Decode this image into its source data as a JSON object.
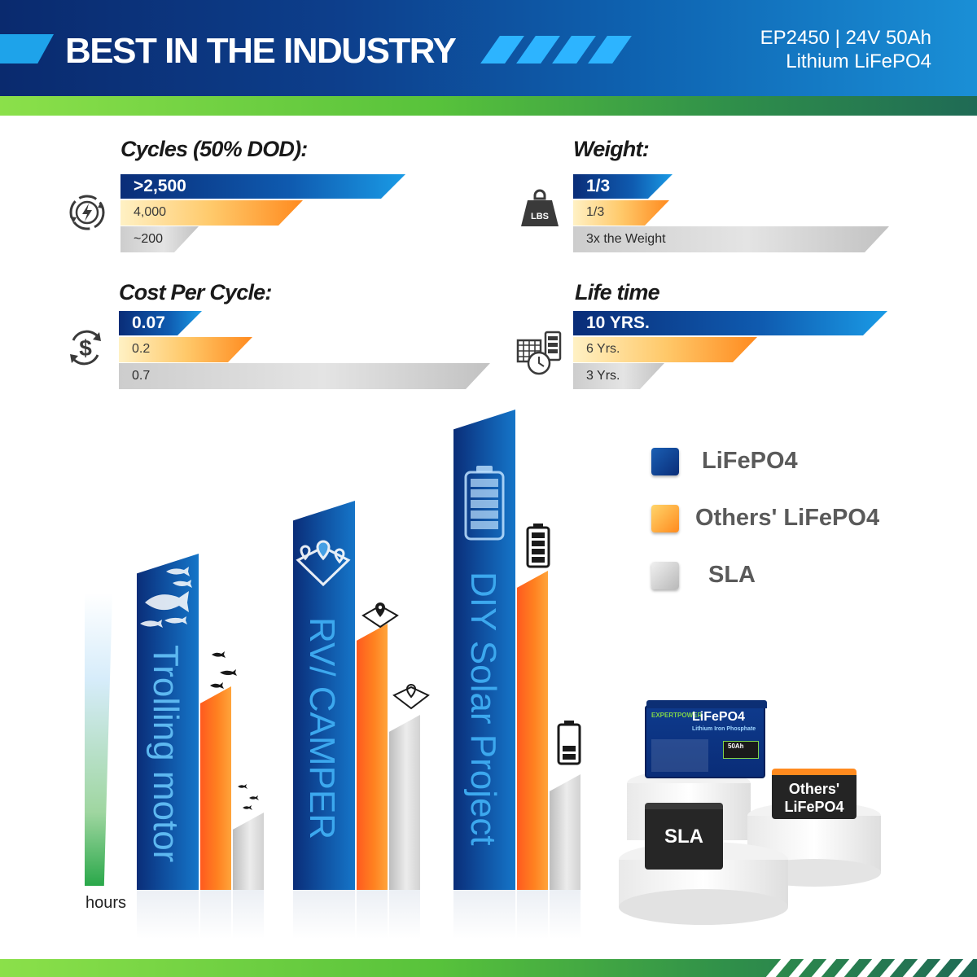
{
  "header": {
    "title": "BEST IN THE INDUSTRY",
    "model_line1": "EP2450 | 24V 50Ah",
    "model_line2": "Lithium LiFePO4"
  },
  "comparisons": {
    "cycles": {
      "title": "Cycles (50% DOD):",
      "lifepo4": ">2,500",
      "others": "4,000",
      "sla": "~200"
    },
    "weight": {
      "title": "Weight:",
      "lifepo4": "1/3",
      "others": "1/3",
      "sla": "3x the Weight",
      "icon_text": "LBS"
    },
    "cost": {
      "title": "Cost Per Cycle:",
      "lifepo4": "0.07",
      "others": "0.2",
      "sla": "0.7"
    },
    "lifetime": {
      "title": "Life time",
      "lifepo4": "10 YRS.",
      "others": "6 Yrs.",
      "sla": "3 Yrs."
    }
  },
  "chart_data": {
    "type": "bar",
    "categories": [
      "Trolling motor",
      "RV/ CAMPER",
      "DIY Solar Project"
    ],
    "series": [
      {
        "name": "LiFePO4",
        "values": [
          413,
          478,
          590
        ]
      },
      {
        "name": "Others' LiFePO4",
        "values": [
          250,
          327,
          392
        ]
      },
      {
        "name": "SLA",
        "values": [
          95,
          215,
          142
        ]
      }
    ],
    "ylabel": "hours",
    "ylim": [
      0,
      600
    ],
    "legend_position": "right"
  },
  "legend": {
    "lifepo4": "LiFePO4",
    "others": "Others' LiFePO4",
    "sla": "SLA"
  },
  "colors": {
    "lifepo4": "#0f4f9f",
    "others": "#ff7a1f",
    "sla": "#c8c8c8",
    "header_dark": "#0a2a6e",
    "green": "#57c23b"
  },
  "products": {
    "lifepo4_brand": "EXPERTPOWER",
    "lifepo4_label": "LiFePO4",
    "lifepo4_sub": "Lithium Iron Phosphate",
    "lifepo4_cap": "50Ah",
    "sla_label": "SLA",
    "others_label_1": "Others'",
    "others_label_2": "LiFePO4"
  }
}
